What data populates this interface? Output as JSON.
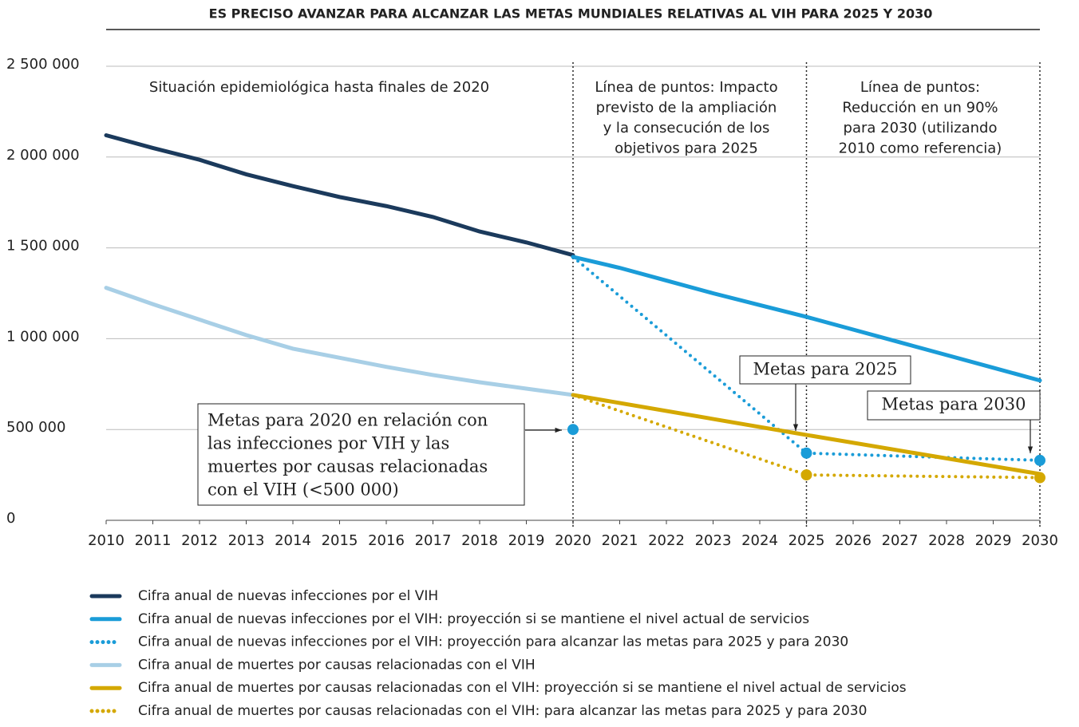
{
  "chart_data": {
    "type": "line",
    "title": "ES PRECISO AVANZAR PARA ALCANZAR LAS METAS MUNDIALES RELATIVAS AL VIH PARA 2025 Y 2030",
    "xlim": [
      2010,
      2030
    ],
    "xticks": [
      2010,
      2011,
      2012,
      2013,
      2014,
      2015,
      2016,
      2017,
      2018,
      2019,
      2020,
      2021,
      2022,
      2023,
      2024,
      2025,
      2026,
      2027,
      2028,
      2029,
      2030
    ],
    "ylim": [
      0,
      2500000
    ],
    "yticks": [
      0,
      {
        "value": 500000,
        "label": "500 000"
      },
      {
        "value": 1000000,
        "label": "1 000 000"
      },
      {
        "value": 1500000,
        "label": "1 500 000"
      },
      {
        "value": 2000000,
        "label": "2 000 000"
      },
      {
        "value": 2500000,
        "label": "2 500 000"
      }
    ],
    "grid": true,
    "vlines": [
      2020,
      2025,
      2030
    ],
    "series": [
      {
        "name": "Cifra anual de nuevas infecciones por el VIH",
        "color": "#1b3a5c",
        "style": "solid",
        "x": [
          2010,
          2011,
          2012,
          2013,
          2014,
          2015,
          2016,
          2017,
          2018,
          2019,
          2020
        ],
        "values": [
          2120000,
          2050000,
          1985000,
          1905000,
          1840000,
          1780000,
          1730000,
          1670000,
          1590000,
          1530000,
          1460000
        ]
      },
      {
        "name": "Cifra anual de nuevas infecciones por el VIH: proyección si se mantiene el nivel actual de servicios",
        "color": "#1a9cd8",
        "style": "solid",
        "x": [
          2020,
          2021,
          2022,
          2023,
          2024,
          2025,
          2026,
          2027,
          2028,
          2029,
          2030
        ],
        "values": [
          1450000,
          1390000,
          1320000,
          1250000,
          1185000,
          1120000,
          1050000,
          980000,
          910000,
          840000,
          770000
        ]
      },
      {
        "name": "Cifra anual de nuevas infecciones por el VIH: proyección para alcanzar las metas para 2025 y para 2030",
        "color": "#1a9cd8",
        "style": "dotted",
        "markers": true,
        "x": [
          2020,
          2025,
          2030
        ],
        "values": [
          1450000,
          370000,
          330000
        ]
      },
      {
        "name": "Cifra anual de muertes por causas relacionadas con el VIH",
        "color": "#a8cfe6",
        "style": "solid",
        "x": [
          2010,
          2011,
          2012,
          2013,
          2014,
          2015,
          2016,
          2017,
          2018,
          2019,
          2020
        ],
        "values": [
          1280000,
          1190000,
          1105000,
          1020000,
          945000,
          895000,
          845000,
          800000,
          760000,
          725000,
          690000
        ]
      },
      {
        "name": "Cifra anual de muertes por causas relacionadas con el VIH: proyección si se mantiene el nivel actual de servicios",
        "color": "#d4a800",
        "style": "solid",
        "x": [
          2020,
          2025,
          2030
        ],
        "values": [
          690000,
          470000,
          255000
        ]
      },
      {
        "name": "Cifra anual de muertes por causas relacionadas con el VIH: para alcanzar las metas para 2025 y para 2030",
        "color": "#d4a800",
        "style": "dotted",
        "markers": true,
        "x": [
          2020,
          2025,
          2030
        ],
        "values": [
          690000,
          250000,
          235000
        ]
      }
    ],
    "target": {
      "x": 2020,
      "value": 500000,
      "color": "#1a9cd8"
    },
    "annotations": {
      "region1": [
        "Situación epidemiológica hasta finales de 2020"
      ],
      "region2": [
        "Línea de puntos: Impacto",
        "previsto de la ampliación",
        "y la consecución de los",
        "objetivos para 2025"
      ],
      "region3": [
        "Línea de puntos:",
        "Reducción en un 90%",
        "para 2030 (utilizando",
        "2010 como referencia)"
      ],
      "box2020": [
        "Metas para 2020 en relación con",
        "las infecciones por VIH y las",
        "muertes por causas relacionadas",
        "con el VIH (<500 000)"
      ],
      "box2025": "Metas para 2025",
      "box2030": "Metas para 2030"
    }
  }
}
